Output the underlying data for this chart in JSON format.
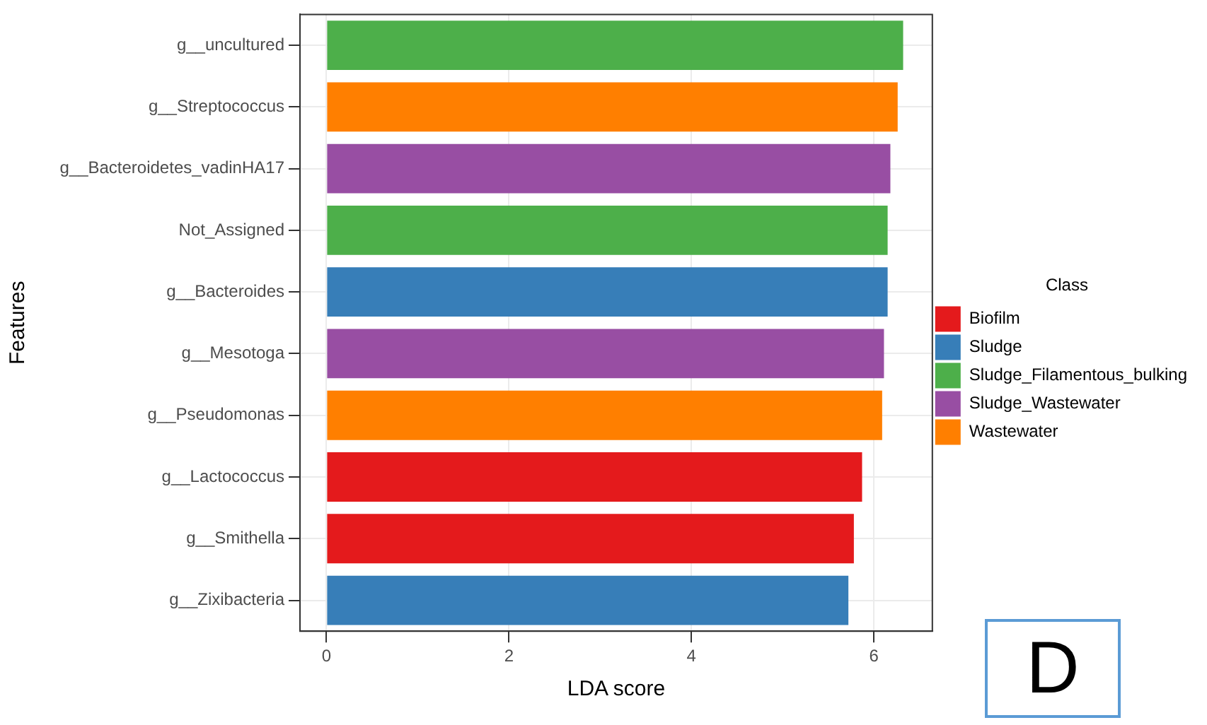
{
  "chart_data": {
    "type": "bar",
    "orientation": "horizontal",
    "xlabel": "LDA score",
    "ylabel": "Features",
    "legend_title": "Class",
    "legend": "right",
    "grid": true,
    "categories": [
      "g__uncultured",
      "g__Streptococcus",
      "g__Bacteroidetes_vadinHA17",
      "Not_Assigned",
      "g__Bacteroides",
      "g__Mesotoga",
      "g__Pseudomonas",
      "g__Lactococcus",
      "g__Smithella",
      "g__Zixibacteria"
    ],
    "series": [
      {
        "name": "Biofilm",
        "color": "#e41a1c",
        "values": [
          null,
          null,
          null,
          null,
          null,
          null,
          null,
          5.87,
          5.78,
          null
        ]
      },
      {
        "name": "Sludge",
        "color": "#377eb8",
        "values": [
          null,
          null,
          null,
          null,
          6.15,
          null,
          null,
          null,
          null,
          5.72
        ]
      },
      {
        "name": "Sludge_Filamentous_bulking",
        "color": "#4daf4a",
        "values": [
          6.32,
          null,
          null,
          6.15,
          null,
          null,
          null,
          null,
          null,
          null
        ]
      },
      {
        "name": "Sludge_Wastewater",
        "color": "#984ea3",
        "values": [
          null,
          null,
          6.18,
          null,
          null,
          6.11,
          null,
          null,
          null,
          null
        ]
      },
      {
        "name": "Wastewater",
        "color": "#ff7f00",
        "values": [
          null,
          6.26,
          null,
          null,
          null,
          null,
          6.09,
          null,
          null,
          null
        ]
      }
    ],
    "xlim": [
      -0.29,
      6.64
    ],
    "xticks": [
      0,
      2,
      4,
      6
    ],
    "annotations": [
      "D"
    ]
  }
}
